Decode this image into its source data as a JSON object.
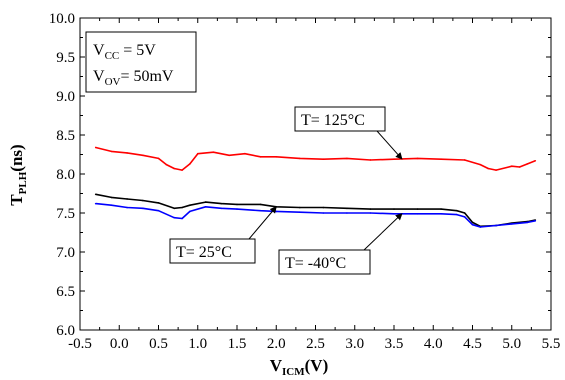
{
  "chart_data": {
    "type": "line",
    "xlabel": {
      "main": "V",
      "sub": "ICM",
      "tail": "(V)"
    },
    "ylabel": {
      "main": "T",
      "sub": "PLH",
      "tail": "(ns)"
    },
    "xlim": [
      -0.5,
      5.5
    ],
    "ylim": [
      6.0,
      10.0
    ],
    "x_ticks": [
      "-0.5",
      "0.0",
      "0.5",
      "1.0",
      "1.5",
      "2.0",
      "2.5",
      "3.0",
      "3.5",
      "4.0",
      "4.5",
      "5.0",
      "5.5"
    ],
    "y_ticks": [
      "6.0",
      "6.5",
      "7.0",
      "7.5",
      "8.0",
      "8.5",
      "9.0",
      "9.5",
      "10.0"
    ],
    "grid": false,
    "legend_box": {
      "lines": [
        {
          "main": "V",
          "sub": "CC",
          "tail": " = 5V"
        },
        {
          "main": "V",
          "sub": "OV",
          "tail": "= 50mV"
        }
      ],
      "placement": "top-left"
    },
    "series": [
      {
        "name": "T= 125°C",
        "color": "#ff0000",
        "x": [
          -0.3,
          -0.1,
          0.1,
          0.3,
          0.5,
          0.6,
          0.7,
          0.8,
          0.9,
          1.0,
          1.2,
          1.4,
          1.6,
          1.8,
          2.0,
          2.3,
          2.6,
          2.9,
          3.2,
          3.5,
          3.8,
          4.1,
          4.4,
          4.6,
          4.7,
          4.8,
          5.0,
          5.1,
          5.2,
          5.3
        ],
        "y": [
          8.34,
          8.29,
          8.27,
          8.24,
          8.2,
          8.12,
          8.07,
          8.05,
          8.13,
          8.26,
          8.28,
          8.24,
          8.26,
          8.22,
          8.22,
          8.2,
          8.19,
          8.2,
          8.18,
          8.19,
          8.2,
          8.19,
          8.18,
          8.12,
          8.07,
          8.05,
          8.1,
          8.09,
          8.13,
          8.17
        ]
      },
      {
        "name": "T= 25°C",
        "color": "#000000",
        "x": [
          -0.3,
          -0.1,
          0.1,
          0.3,
          0.5,
          0.7,
          0.8,
          0.9,
          1.1,
          1.3,
          1.5,
          1.8,
          2.0,
          2.3,
          2.6,
          2.9,
          3.2,
          3.5,
          3.8,
          4.1,
          4.3,
          4.4,
          4.5,
          4.6,
          4.8,
          5.0,
          5.2,
          5.3
        ],
        "y": [
          7.74,
          7.7,
          7.68,
          7.66,
          7.63,
          7.56,
          7.57,
          7.6,
          7.64,
          7.62,
          7.61,
          7.61,
          7.58,
          7.57,
          7.57,
          7.56,
          7.55,
          7.55,
          7.55,
          7.55,
          7.53,
          7.5,
          7.38,
          7.33,
          7.34,
          7.37,
          7.39,
          7.41
        ]
      },
      {
        "name": "T= -40°C",
        "color": "#0000ff",
        "x": [
          -0.3,
          -0.1,
          0.1,
          0.3,
          0.5,
          0.7,
          0.8,
          0.9,
          1.1,
          1.3,
          1.5,
          1.8,
          2.0,
          2.3,
          2.6,
          2.9,
          3.2,
          3.5,
          3.8,
          4.1,
          4.3,
          4.4,
          4.5,
          4.6,
          4.8,
          5.0,
          5.2,
          5.3
        ],
        "y": [
          7.62,
          7.6,
          7.57,
          7.56,
          7.53,
          7.44,
          7.43,
          7.52,
          7.58,
          7.56,
          7.55,
          7.53,
          7.52,
          7.51,
          7.5,
          7.5,
          7.5,
          7.49,
          7.49,
          7.49,
          7.48,
          7.45,
          7.35,
          7.32,
          7.34,
          7.36,
          7.38,
          7.4
        ]
      }
    ],
    "annotations": [
      {
        "text": "T= 125°C",
        "series": 0,
        "point_x": 3.6
      },
      {
        "text": "T= 25°C",
        "series": 1,
        "point_x": 2.0
      },
      {
        "text": "T= -40°C",
        "series": 2,
        "point_x": 3.6
      }
    ]
  }
}
